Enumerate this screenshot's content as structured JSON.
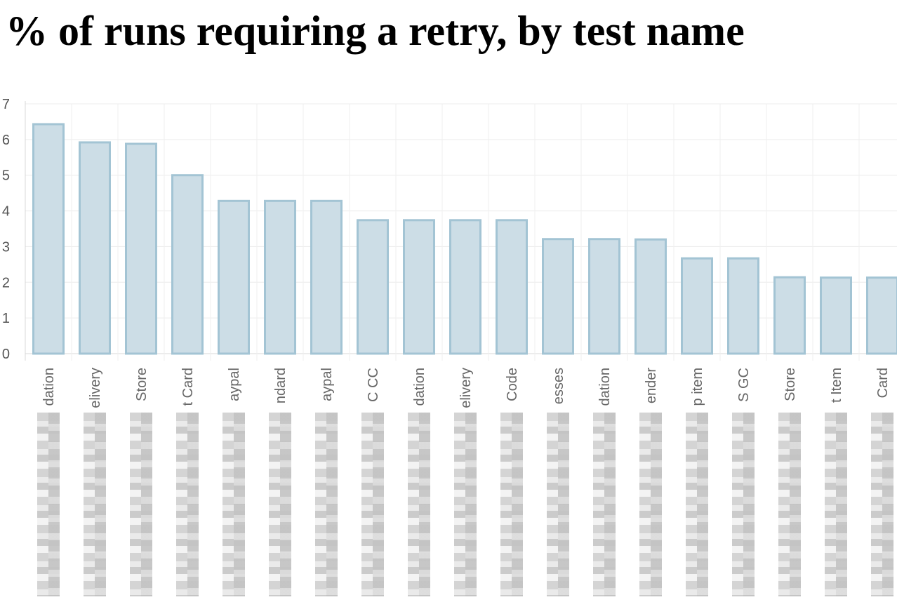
{
  "title": "% of runs requiring a retry, by test name",
  "chart_data": {
    "type": "bar",
    "title": "% of runs requiring a retry, by test name",
    "xlabel": "",
    "ylabel": "",
    "ylim": [
      0,
      7
    ],
    "yticks": [
      "0",
      "1",
      "2",
      "3",
      "4",
      "5",
      "6",
      "7"
    ],
    "grid": true,
    "bar_color": "#ccdde6",
    "bar_border_color": "#a3c4d4",
    "categories": [
      "dation",
      "elivery",
      "Store",
      "t Card",
      "aypal",
      "ndard",
      "aypal",
      "C CC",
      "dation",
      "elivery",
      "Code",
      "esses",
      "dation",
      "ender",
      "p item",
      "S GC",
      "Store",
      "t Item",
      "Card"
    ],
    "values": [
      6.43,
      5.92,
      5.88,
      5.0,
      4.28,
      4.28,
      4.28,
      3.74,
      3.74,
      3.74,
      3.74,
      3.21,
      3.21,
      3.2,
      2.67,
      2.67,
      2.14,
      2.13,
      2.13
    ]
  }
}
